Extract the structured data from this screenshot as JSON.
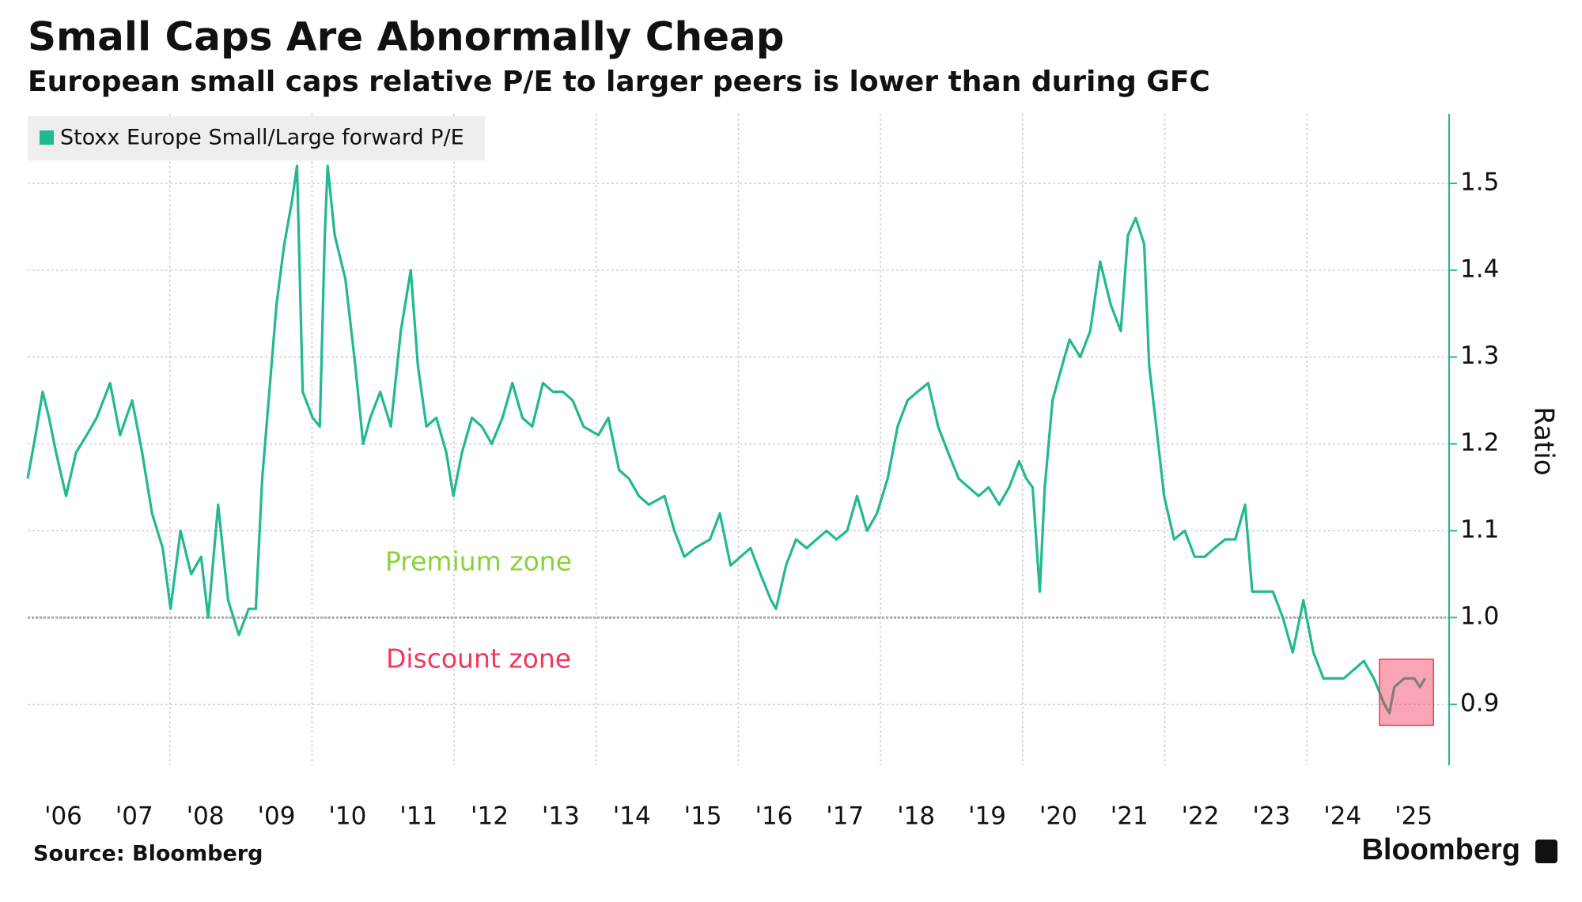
{
  "chart_data": {
    "type": "line",
    "title": "Small Caps Are Abnormally Cheap",
    "subtitle": "European small caps relative P/E to larger peers is lower than during GFC",
    "y_label": "Ratio",
    "source": "Source: Bloomberg",
    "brand": "Bloomberg",
    "legend": "top-left",
    "grid": true,
    "xlim": [
      2006,
      2026
    ],
    "ylim": [
      0.83,
      1.58
    ],
    "yticks": [
      0.9,
      {
        "value": 1,
        "label": "1.0"
      },
      1.1,
      1.2,
      1.3,
      1.4,
      1.5
    ],
    "xticks": [
      {
        "value": 2006.5,
        "label": "'06"
      },
      {
        "value": 2007.5,
        "label": "'07"
      },
      {
        "value": 2008.5,
        "label": "'08"
      },
      {
        "value": 2009.5,
        "label": "'09"
      },
      {
        "value": 2010.5,
        "label": "'10"
      },
      {
        "value": 2011.5,
        "label": "'11"
      },
      {
        "value": 2012.5,
        "label": "'12"
      },
      {
        "value": 2013.5,
        "label": "'13"
      },
      {
        "value": 2014.5,
        "label": "'14"
      },
      {
        "value": 2015.5,
        "label": "'15"
      },
      {
        "value": 2016.5,
        "label": "'16"
      },
      {
        "value": 2017.5,
        "label": "'17"
      },
      {
        "value": 2018.5,
        "label": "'18"
      },
      {
        "value": 2019.5,
        "label": "'19"
      },
      {
        "value": 2020.5,
        "label": "'20"
      },
      {
        "value": 2021.5,
        "label": "'21"
      },
      {
        "value": 2022.5,
        "label": "'22"
      },
      {
        "value": 2023.5,
        "label": "'23"
      },
      {
        "value": 2024.5,
        "label": "'24"
      },
      {
        "value": 2025.5,
        "label": "'25"
      }
    ],
    "xgrid": [
      2008,
      2010,
      2012,
      2014,
      2016,
      2018,
      2020,
      2022,
      2024
    ],
    "reference_line": {
      "value": 1,
      "color": "#aaaaaa"
    },
    "annotations": [
      {
        "text": "Premium zone",
        "color": "#8cd13c"
      },
      {
        "text": "Discount zone",
        "color": "#f2385a"
      }
    ],
    "highlight": {
      "xlim": [
        2025.02,
        2025.78
      ],
      "ylim": [
        0.876,
        0.952
      ],
      "color": "#f2385a"
    },
    "x": [
      2006.0,
      2006.11,
      2006.21,
      2006.3,
      2006.4,
      2006.54,
      2006.68,
      2006.83,
      2006.97,
      2007.16,
      2007.3,
      2007.47,
      2007.61,
      2007.75,
      2007.9,
      2008.01,
      2008.15,
      2008.3,
      2008.44,
      2008.54,
      2008.68,
      2008.82,
      2008.97,
      2009.11,
      2009.21,
      2009.3,
      2009.4,
      2009.5,
      2009.61,
      2009.72,
      2009.79,
      2009.87,
      2010.01,
      2010.11,
      2010.18,
      2010.22,
      2010.32,
      2010.47,
      2010.61,
      2010.72,
      2010.82,
      2010.96,
      2011.11,
      2011.25,
      2011.39,
      2011.49,
      2011.61,
      2011.75,
      2011.89,
      2011.99,
      2012.11,
      2012.25,
      2012.39,
      2012.53,
      2012.68,
      2012.82,
      2012.96,
      2013.1,
      2013.25,
      2013.39,
      2013.53,
      2013.67,
      2013.82,
      2014.03,
      2014.17,
      2014.32,
      2014.46,
      2014.6,
      2014.74,
      2014.96,
      2015.1,
      2015.24,
      2015.39,
      2015.6,
      2015.74,
      2015.89,
      2016.03,
      2016.17,
      2016.31,
      2016.46,
      2016.53,
      2016.67,
      2016.81,
      2016.96,
      2017.1,
      2017.24,
      2017.38,
      2017.53,
      2017.67,
      2017.81,
      2017.95,
      2018.1,
      2018.24,
      2018.38,
      2018.52,
      2018.67,
      2018.81,
      2018.95,
      2019.1,
      2019.24,
      2019.38,
      2019.52,
      2019.67,
      2019.81,
      2019.95,
      2020.05,
      2020.14,
      2020.24,
      2020.31,
      2020.42,
      2020.52,
      2020.66,
      2020.81,
      2020.95,
      2021.09,
      2021.24,
      2021.38,
      2021.48,
      2021.59,
      2021.71,
      2021.78,
      2021.88,
      2021.99,
      2022.13,
      2022.28,
      2022.42,
      2022.56,
      2022.7,
      2022.85,
      2022.99,
      2023.13,
      2023.23,
      2023.37,
      2023.52,
      2023.66,
      2023.8,
      2023.95,
      2024.09,
      2024.23,
      2024.37,
      2024.52,
      2024.66,
      2024.8,
      2024.94,
      2025.09,
      2025.16,
      2025.23,
      2025.37,
      2025.51,
      2025.59,
      2025.66
    ],
    "series": [
      {
        "name": "Stoxx Europe Small/Large forward P/E",
        "color": "#22b990",
        "values": [
          1.16,
          1.21,
          1.26,
          1.23,
          1.19,
          1.14,
          1.19,
          1.21,
          1.23,
          1.27,
          1.21,
          1.25,
          1.19,
          1.12,
          1.08,
          1.01,
          1.1,
          1.05,
          1.07,
          1.0,
          1.13,
          1.02,
          0.98,
          1.01,
          1.01,
          1.16,
          1.26,
          1.36,
          1.43,
          1.48,
          1.52,
          1.26,
          1.23,
          1.22,
          1.44,
          1.52,
          1.44,
          1.39,
          1.29,
          1.2,
          1.23,
          1.26,
          1.22,
          1.33,
          1.4,
          1.29,
          1.22,
          1.23,
          1.19,
          1.14,
          1.19,
          1.23,
          1.22,
          1.2,
          1.23,
          1.27,
          1.23,
          1.22,
          1.27,
          1.26,
          1.26,
          1.25,
          1.22,
          1.21,
          1.23,
          1.17,
          1.16,
          1.14,
          1.13,
          1.14,
          1.1,
          1.07,
          1.08,
          1.09,
          1.12,
          1.06,
          1.07,
          1.08,
          1.05,
          1.02,
          1.01,
          1.06,
          1.09,
          1.08,
          1.09,
          1.1,
          1.09,
          1.1,
          1.14,
          1.1,
          1.12,
          1.16,
          1.22,
          1.25,
          1.26,
          1.27,
          1.22,
          1.19,
          1.16,
          1.15,
          1.14,
          1.15,
          1.13,
          1.15,
          1.18,
          1.16,
          1.15,
          1.03,
          1.15,
          1.25,
          1.28,
          1.32,
          1.3,
          1.33,
          1.41,
          1.36,
          1.33,
          1.44,
          1.46,
          1.43,
          1.29,
          1.22,
          1.14,
          1.09,
          1.1,
          1.07,
          1.07,
          1.08,
          1.09,
          1.09,
          1.13,
          1.03,
          1.03,
          1.03,
          1.0,
          0.96,
          1.02,
          0.96,
          0.93,
          0.93,
          0.93,
          0.94,
          0.95,
          0.93,
          0.9,
          0.89,
          0.92,
          0.93,
          0.93,
          0.92,
          0.93
        ]
      }
    ]
  }
}
